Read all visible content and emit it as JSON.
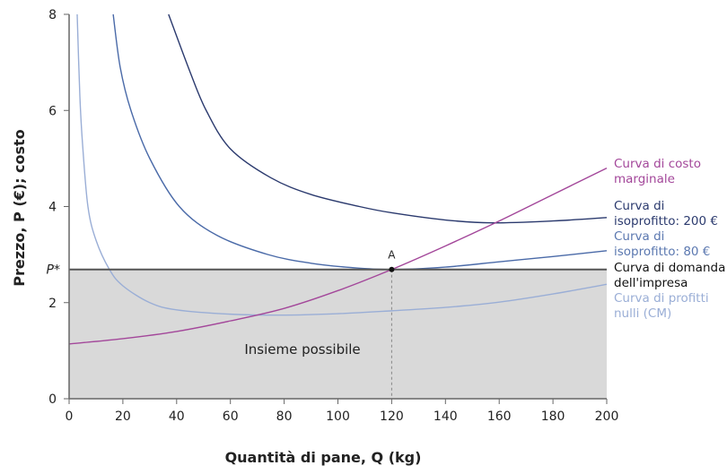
{
  "chart_data": {
    "type": "line",
    "xlabel": "Quantità di pane, Q (kg)",
    "ylabel": "Prezzo, P (€); costo",
    "xlim": [
      0,
      200
    ],
    "ylim": [
      0,
      8
    ],
    "x_ticks": [
      0,
      20,
      40,
      60,
      80,
      100,
      120,
      140,
      160,
      180,
      200
    ],
    "y_ticks": [
      0,
      2,
      4,
      6,
      8
    ],
    "y_tick_special": {
      "label": "P*",
      "value": 2.69
    },
    "grid": false,
    "legend": "right, inline labels",
    "feasible_region": {
      "label": "Insieme possibile",
      "color": "#d9d9d9"
    },
    "point_A": {
      "label": "A",
      "x": 120,
      "y": 2.69
    },
    "series": [
      {
        "name": "Curva di costo marginale",
        "color": "#a3479a",
        "x": [
          0,
          20,
          40,
          60,
          80,
          100,
          120,
          140,
          160,
          180,
          200
        ],
        "y": [
          1.14,
          1.25,
          1.4,
          1.62,
          1.88,
          2.25,
          2.69,
          3.18,
          3.7,
          4.25,
          4.8
        ]
      },
      {
        "name": "Curva di isoprofitto: 200 €",
        "color": "#2b3a6e",
        "x": [
          37,
          45,
          51,
          60,
          75,
          90,
          108,
          120,
          140,
          157,
          180,
          200
        ],
        "y": [
          8,
          6.8,
          6,
          5.2,
          4.6,
          4.25,
          4.0,
          3.87,
          3.72,
          3.66,
          3.7,
          3.77
        ]
      },
      {
        "name": "Curva di isoprofitto: 80 €",
        "color": "#4a6aa8",
        "x": [
          16.4,
          19,
          23,
          30,
          41,
          55,
          74,
          90,
          105,
          120,
          140,
          160,
          180,
          200
        ],
        "y": [
          8,
          6.9,
          6,
          5,
          4,
          3.4,
          3.0,
          2.82,
          2.73,
          2.69,
          2.74,
          2.85,
          2.96,
          3.08
        ]
      },
      {
        "name": "Curva di domanda dell'impresa",
        "color": "#555555",
        "x": [
          0,
          200
        ],
        "y": [
          2.69,
          2.69
        ]
      },
      {
        "name": "Curva di profitti nulli (CM)",
        "color": "#9aaed6",
        "x": [
          3,
          4,
          5,
          7,
          10,
          15,
          20,
          30,
          40,
          60,
          80,
          100,
          120,
          140,
          160,
          180,
          200
        ],
        "y": [
          8,
          6.3,
          5.3,
          4.0,
          3.3,
          2.69,
          2.35,
          2.0,
          1.85,
          1.76,
          1.74,
          1.77,
          1.83,
          1.9,
          2.01,
          2.18,
          2.38
        ]
      }
    ],
    "labels": {
      "mc": [
        "Curva di costo",
        "marginale"
      ],
      "iso200": [
        "Curva di",
        "isoprofitto: 200 €"
      ],
      "iso80": [
        "Curva di",
        "isoprofitto: 80 €"
      ],
      "demand": [
        "Curva di domanda",
        "dell'impresa"
      ],
      "zero": [
        "Curva di profitti",
        "nulli (CM)"
      ]
    }
  }
}
